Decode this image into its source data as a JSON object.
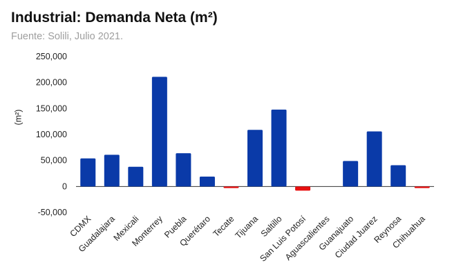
{
  "chart_data": {
    "type": "bar",
    "title": "Industrial: Demanda Neta (m²)",
    "subtitle": "Fuente: Solili, Julio 2021.",
    "ylabel": "(m²)",
    "xlabel": "",
    "ylim": [
      -50000,
      250000
    ],
    "yticks": [
      250000,
      200000,
      150000,
      100000,
      50000,
      0,
      -50000
    ],
    "ytick_labels": [
      "250,000",
      "200,000",
      "150,000",
      "100,000",
      "50,000",
      "0",
      "-50,000"
    ],
    "grid": false,
    "legend": "none",
    "positive_color": "#0a3aa8",
    "negative_color": "#e81010",
    "categories": [
      "CDMX",
      "Guadalajara",
      "Mexicali",
      "Monterrey",
      "Puebla",
      "Querétaro",
      "Tecate",
      "Tijuana",
      "Saltillo",
      "San Luis Potosí",
      "Aguascalientes",
      "Guanajuato",
      "Ciudad Juarez",
      "Reynosa",
      "Chihuahua"
    ],
    "values": [
      54000,
      61000,
      38000,
      211000,
      64000,
      19000,
      -3000,
      109000,
      148000,
      -8000,
      0,
      49000,
      106000,
      41000,
      -3000
    ]
  }
}
